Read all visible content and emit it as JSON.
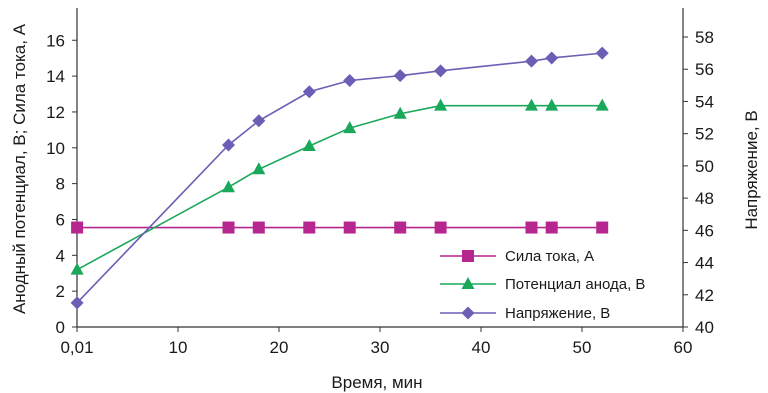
{
  "chart_data": {
    "type": "line",
    "xlabel": "Время, мин",
    "ylabel_left": "Анодный потенциал, В; Сила тока, А",
    "ylabel_right": "Напряжение, В",
    "x_ticks": [
      "0,01",
      "10",
      "20",
      "30",
      "40",
      "50",
      "60"
    ],
    "x_tick_values": [
      0,
      10,
      20,
      30,
      40,
      50,
      60
    ],
    "xlim": [
      0,
      60
    ],
    "ylim_left": [
      0,
      17.8
    ],
    "left_ticks": [
      0,
      2,
      4,
      6,
      8,
      10,
      12,
      14,
      16
    ],
    "ylim_right": [
      40,
      59.8
    ],
    "right_ticks": [
      40,
      42,
      44,
      46,
      48,
      50,
      52,
      54,
      56,
      58
    ],
    "grid": false,
    "legend_position": "bottom-right",
    "series": [
      {
        "name": "Сила тока, А",
        "axis": "left",
        "color": "#b5278f",
        "marker": "square",
        "x": [
          0.01,
          15,
          18,
          23,
          27,
          32,
          36,
          45,
          47,
          52
        ],
        "y": [
          5.55,
          5.55,
          5.55,
          5.55,
          5.55,
          5.55,
          5.55,
          5.55,
          5.55,
          5.55
        ]
      },
      {
        "name": "Потенциал анода, В",
        "axis": "left",
        "color": "#1aa85a",
        "marker": "triangle",
        "x": [
          0.01,
          15,
          18,
          23,
          27,
          32,
          36,
          45,
          47,
          52
        ],
        "y": [
          3.2,
          7.8,
          8.8,
          10.1,
          11.1,
          11.9,
          12.35,
          12.35,
          12.35,
          12.35
        ]
      },
      {
        "name": "Напряжение, В",
        "axis": "right",
        "color": "#6b5fb5",
        "marker": "diamond",
        "x": [
          0.01,
          15,
          18,
          23,
          27,
          32,
          36,
          45,
          47,
          52
        ],
        "y": [
          41.5,
          51.3,
          52.8,
          54.6,
          55.3,
          55.6,
          55.9,
          56.5,
          56.7,
          57.0
        ]
      }
    ]
  }
}
